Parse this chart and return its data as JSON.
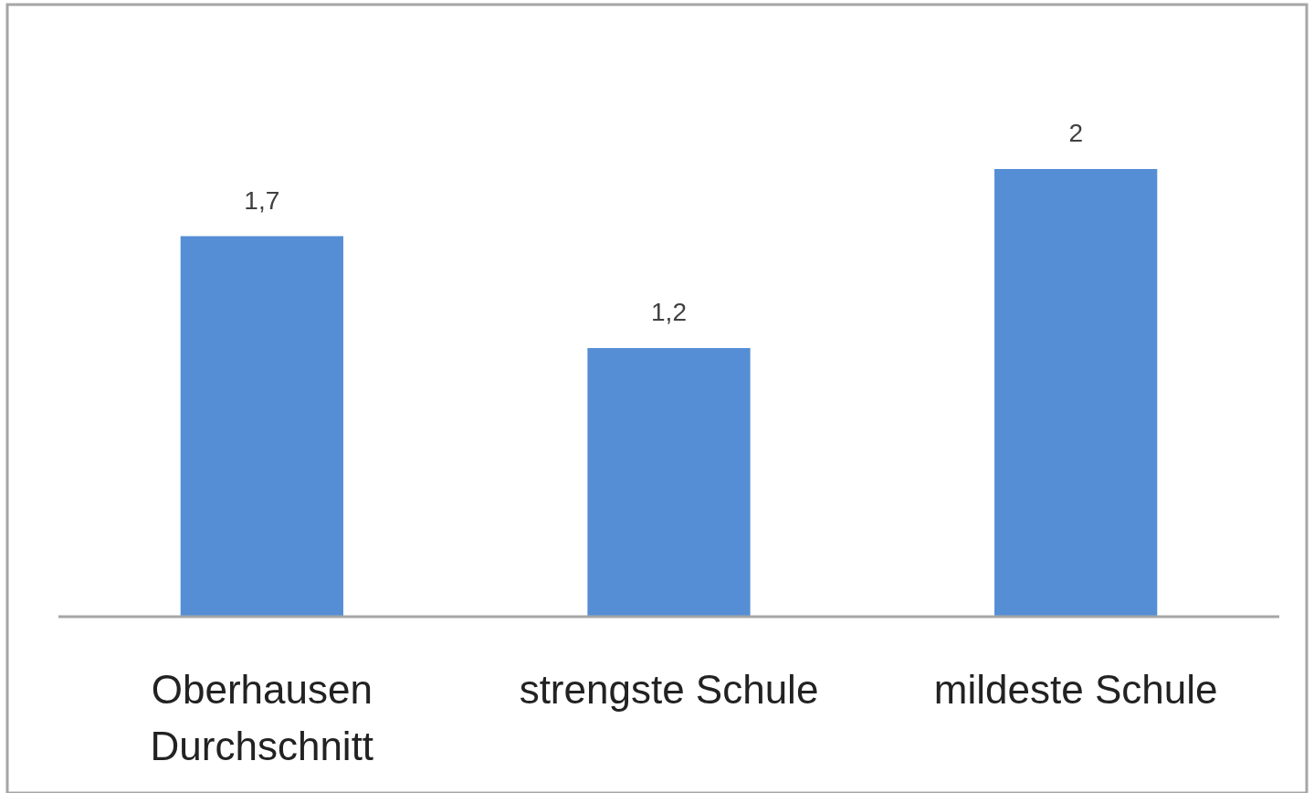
{
  "chart_data": {
    "type": "bar",
    "categories": [
      "Oberhausen Durchschnitt",
      "strengste Schule",
      "mildeste Schule"
    ],
    "values": [
      1.7,
      1.2,
      2
    ],
    "value_labels": [
      "1,7",
      "1,2",
      "2"
    ],
    "color": "#558ed5",
    "ylim": [
      0,
      2
    ]
  }
}
